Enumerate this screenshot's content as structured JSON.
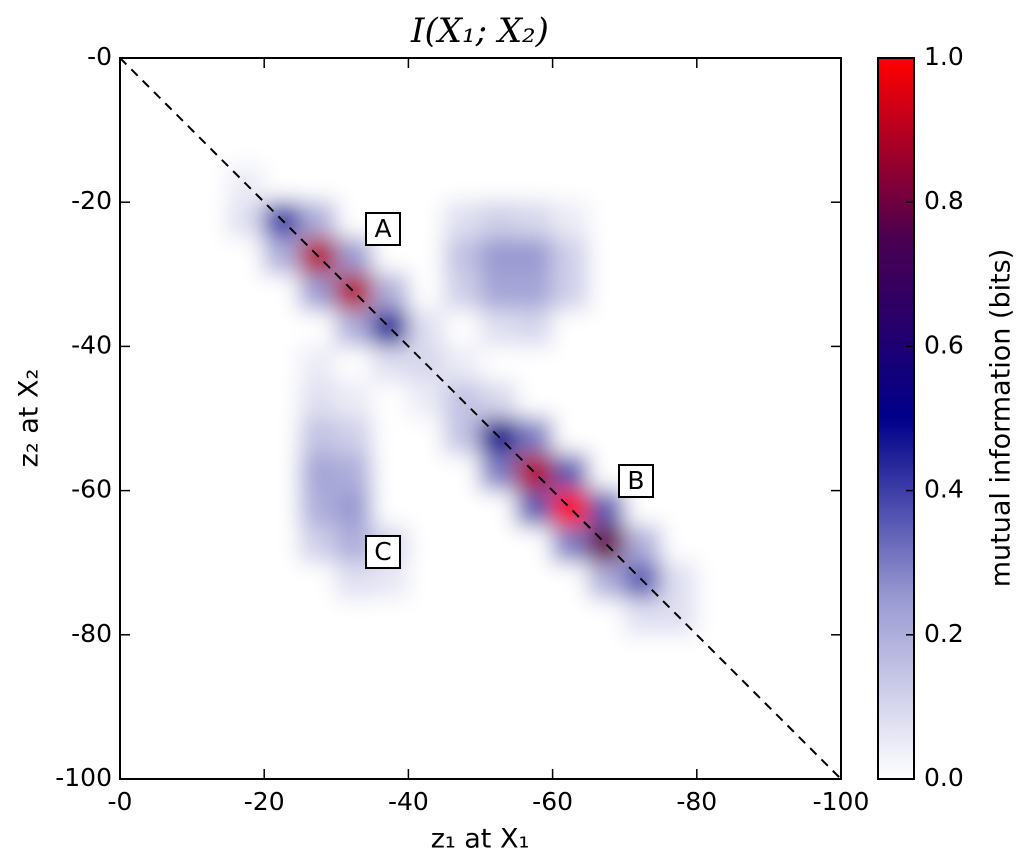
{
  "chart_data": {
    "type": "heatmap",
    "title": "I(X₁; X₂)",
    "x_label": "z₁ at X₁",
    "y_label": "z₂ at X₂",
    "colorbar_label": "mutual information (bits)",
    "annotations": [
      "A",
      "B",
      "C"
    ],
    "x": [
      -2.5,
      -7.5,
      -12.5,
      -17.5,
      -22.5,
      -27.5,
      -32.5,
      -37.5,
      -42.5,
      -47.5,
      -52.5,
      -57.5,
      -62.5,
      -67.5,
      -72.5,
      -77.5,
      -82.5,
      -87.5,
      -92.5,
      -97.5
    ],
    "y": [
      -2.5,
      -7.5,
      -12.5,
      -17.5,
      -22.5,
      -27.5,
      -32.5,
      -37.5,
      -42.5,
      -47.5,
      -52.5,
      -57.5,
      -62.5,
      -67.5,
      -72.5,
      -77.5,
      -82.5,
      -87.5,
      -92.5,
      -97.5
    ],
    "values": [
      [
        0,
        0,
        0,
        0,
        0,
        0,
        0,
        0,
        0,
        0,
        0,
        0,
        0,
        0,
        0,
        0,
        0,
        0,
        0,
        0
      ],
      [
        0,
        0,
        0,
        0,
        0,
        0,
        0,
        0,
        0,
        0,
        0,
        0,
        0,
        0,
        0,
        0,
        0,
        0,
        0,
        0
      ],
      [
        0,
        0,
        0,
        0,
        0,
        0,
        0,
        0,
        0,
        0,
        0,
        0,
        0,
        0,
        0,
        0,
        0,
        0,
        0,
        0
      ],
      [
        0,
        0,
        0,
        0.05,
        0,
        0,
        0,
        0,
        0,
        0,
        0,
        0,
        0,
        0,
        0,
        0,
        0,
        0,
        0,
        0
      ],
      [
        0,
        0,
        0,
        0.08,
        0.4,
        0.2,
        0,
        0,
        0,
        0.08,
        0.12,
        0.1,
        0.05,
        0,
        0,
        0,
        0,
        0,
        0,
        0
      ],
      [
        0,
        0,
        0,
        0,
        0.2,
        0.9,
        0.25,
        0,
        0,
        0.15,
        0.25,
        0.25,
        0.12,
        0,
        0,
        0,
        0,
        0,
        0,
        0
      ],
      [
        0,
        0,
        0,
        0,
        0,
        0.25,
        0.9,
        0.2,
        0,
        0.12,
        0.22,
        0.22,
        0.12,
        0,
        0,
        0,
        0,
        0,
        0,
        0
      ],
      [
        0,
        0,
        0,
        0,
        0,
        0,
        0.2,
        0.45,
        0.08,
        0,
        0.08,
        0.1,
        0,
        0,
        0,
        0,
        0,
        0,
        0,
        0
      ],
      [
        0,
        0,
        0,
        0,
        0,
        0.05,
        0,
        0.08,
        0.1,
        0.05,
        0,
        0,
        0,
        0,
        0,
        0,
        0,
        0,
        0,
        0
      ],
      [
        0,
        0,
        0,
        0,
        0,
        0.08,
        0.05,
        0,
        0.05,
        0.15,
        0.1,
        0,
        0,
        0,
        0,
        0,
        0,
        0,
        0,
        0
      ],
      [
        0,
        0,
        0,
        0,
        0,
        0.15,
        0.12,
        0,
        0,
        0.15,
        0.5,
        0.3,
        0,
        0,
        0,
        0,
        0,
        0,
        0,
        0
      ],
      [
        0,
        0,
        0,
        0,
        0,
        0.22,
        0.2,
        0,
        0,
        0,
        0.3,
        0.9,
        0.35,
        0,
        0,
        0,
        0,
        0,
        0,
        0
      ],
      [
        0,
        0,
        0,
        0,
        0,
        0.2,
        0.25,
        0,
        0,
        0,
        0,
        0.35,
        1.0,
        0.35,
        0,
        0,
        0,
        0,
        0,
        0
      ],
      [
        0,
        0,
        0,
        0,
        0,
        0.12,
        0.2,
        0.1,
        0,
        0,
        0,
        0,
        0.3,
        0.8,
        0.2,
        0,
        0,
        0,
        0,
        0
      ],
      [
        0,
        0,
        0,
        0,
        0,
        0,
        0.08,
        0.06,
        0,
        0,
        0,
        0,
        0,
        0.2,
        0.35,
        0.08,
        0,
        0,
        0,
        0
      ],
      [
        0,
        0,
        0,
        0,
        0,
        0,
        0,
        0,
        0,
        0,
        0,
        0,
        0,
        0,
        0.08,
        0.08,
        0,
        0,
        0,
        0
      ],
      [
        0,
        0,
        0,
        0,
        0,
        0,
        0,
        0,
        0,
        0,
        0,
        0,
        0,
        0,
        0,
        0,
        0,
        0,
        0,
        0
      ],
      [
        0,
        0,
        0,
        0,
        0,
        0,
        0,
        0,
        0,
        0,
        0,
        0,
        0,
        0,
        0,
        0,
        0,
        0,
        0,
        0
      ],
      [
        0,
        0,
        0,
        0,
        0,
        0,
        0,
        0,
        0,
        0,
        0,
        0,
        0,
        0,
        0,
        0,
        0,
        0,
        0,
        0
      ],
      [
        0,
        0,
        0,
        0,
        0,
        0,
        0,
        0,
        0,
        0,
        0,
        0,
        0,
        0,
        0,
        0,
        0,
        0,
        0,
        0
      ]
    ],
    "colormap": [
      "#ffffff",
      "#9a9ad2",
      "#00008a",
      "#4a0050",
      "#ff0000"
    ],
    "xlim": [
      0,
      -100
    ],
    "ylim": [
      -100,
      0
    ],
    "clim": [
      0,
      1
    ],
    "xticks": [
      {
        "value": 0,
        "label": "-0"
      },
      -20,
      -40,
      -60,
      -80,
      -100
    ],
    "yticks": [
      {
        "value": 0,
        "label": "-0"
      },
      -20,
      -40,
      -60,
      -80,
      -100
    ],
    "cticks": [
      {
        "value": 0,
        "label": "0.0"
      },
      0.2,
      0.4,
      0.6,
      0.8,
      {
        "value": 1,
        "label": "1.0"
      }
    ]
  }
}
